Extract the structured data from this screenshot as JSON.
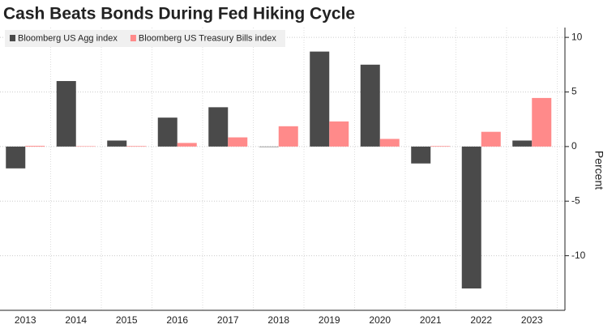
{
  "chart_data": {
    "type": "bar",
    "title": "Cash Beats Bonds During Fed Hiking Cycle",
    "categories": [
      "2013",
      "2014",
      "2015",
      "2016",
      "2017",
      "2018",
      "2019",
      "2020",
      "2021",
      "2022",
      "2023"
    ],
    "series": [
      {
        "name": "Bloomberg US Agg index",
        "color": "#4a4a4a",
        "values": [
          -2.0,
          6.0,
          0.55,
          2.65,
          3.6,
          -0.01,
          8.7,
          7.5,
          -1.55,
          -13.0,
          0.55
        ]
      },
      {
        "name": "Bloomberg US Treasury Bills index",
        "color": "#ff8a8a",
        "values": [
          0.07,
          0.03,
          0.05,
          0.33,
          0.84,
          1.86,
          2.3,
          0.7,
          0.05,
          1.35,
          4.45
        ]
      }
    ],
    "y_label": "Percent",
    "ylim": [
      -15,
      10.9
    ],
    "yticks": [
      10,
      5,
      0,
      -5,
      -10
    ],
    "grid": true,
    "legend": "top-left"
  }
}
